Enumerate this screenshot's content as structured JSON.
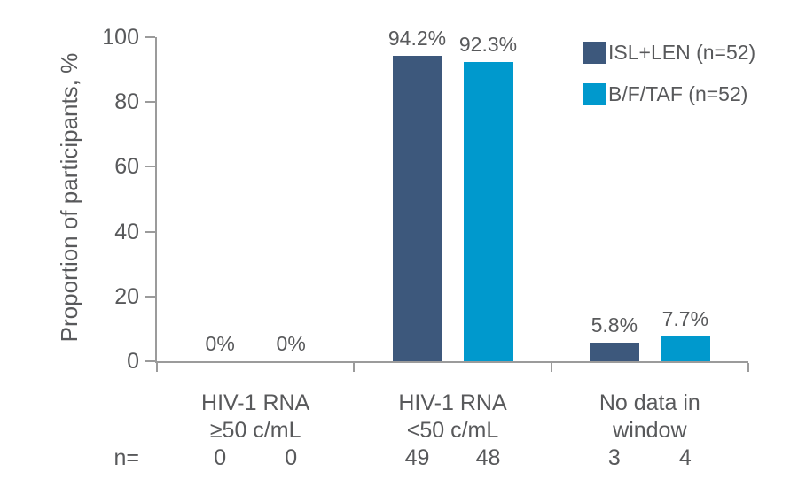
{
  "chart_data": {
    "type": "bar",
    "title": "",
    "ylabel": "Proportion of participants, %",
    "xlabel": "",
    "ylim": [
      0,
      100
    ],
    "yticks": [
      0,
      20,
      40,
      60,
      80,
      100
    ],
    "grid": false,
    "legend_position": "top-right",
    "categories": [
      "HIV-1 RNA\n≥50 c/mL",
      "HIV-1 RNA\n<50 c/mL",
      "No data in\nwindow"
    ],
    "n_row_label": "n=",
    "series": [
      {
        "name": "ISL+LEN (n=52)",
        "color": "#3D587C",
        "values": [
          0,
          94.2,
          5.8
        ],
        "value_labels": [
          "0%",
          "94.2%",
          "5.8%"
        ],
        "n": [
          0,
          49,
          3
        ]
      },
      {
        "name": "B/F/TAF (n=52)",
        "color": "#0099CD",
        "values": [
          0,
          92.3,
          7.7
        ],
        "value_labels": [
          "0%",
          "92.3%",
          "7.7%"
        ],
        "n": [
          0,
          48,
          4
        ]
      }
    ],
    "axis_color": "#9B9B9B",
    "text_color": "#58595B",
    "background_color": "#FFFFFF"
  }
}
